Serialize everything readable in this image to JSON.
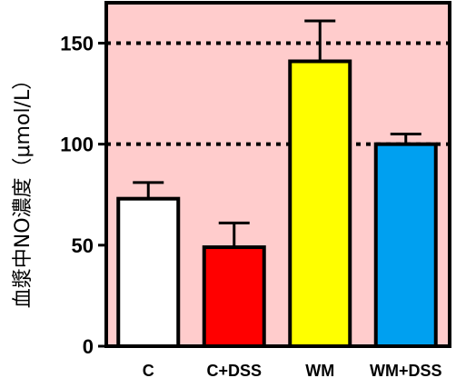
{
  "chart_data": {
    "type": "bar",
    "title": "",
    "xlabel": "",
    "ylabel": "血漿中NO濃度（μmol/L）",
    "ylim": [
      0,
      170
    ],
    "yticks": [
      0,
      50,
      100,
      150
    ],
    "ytick_labels": [
      "0",
      "50",
      "100",
      "150"
    ],
    "categories": [
      "C",
      "C+DSS",
      "WM",
      "WM+DSS"
    ],
    "values": [
      73,
      49,
      141,
      100
    ],
    "errors": [
      8,
      12,
      20,
      5
    ],
    "bar_colors": [
      "#ffffff",
      "#ff0000",
      "#ffff00",
      "#00a0f0"
    ],
    "reference_lines": [
      100,
      150
    ],
    "plot_background": "#ffcccc",
    "grid": false
  }
}
